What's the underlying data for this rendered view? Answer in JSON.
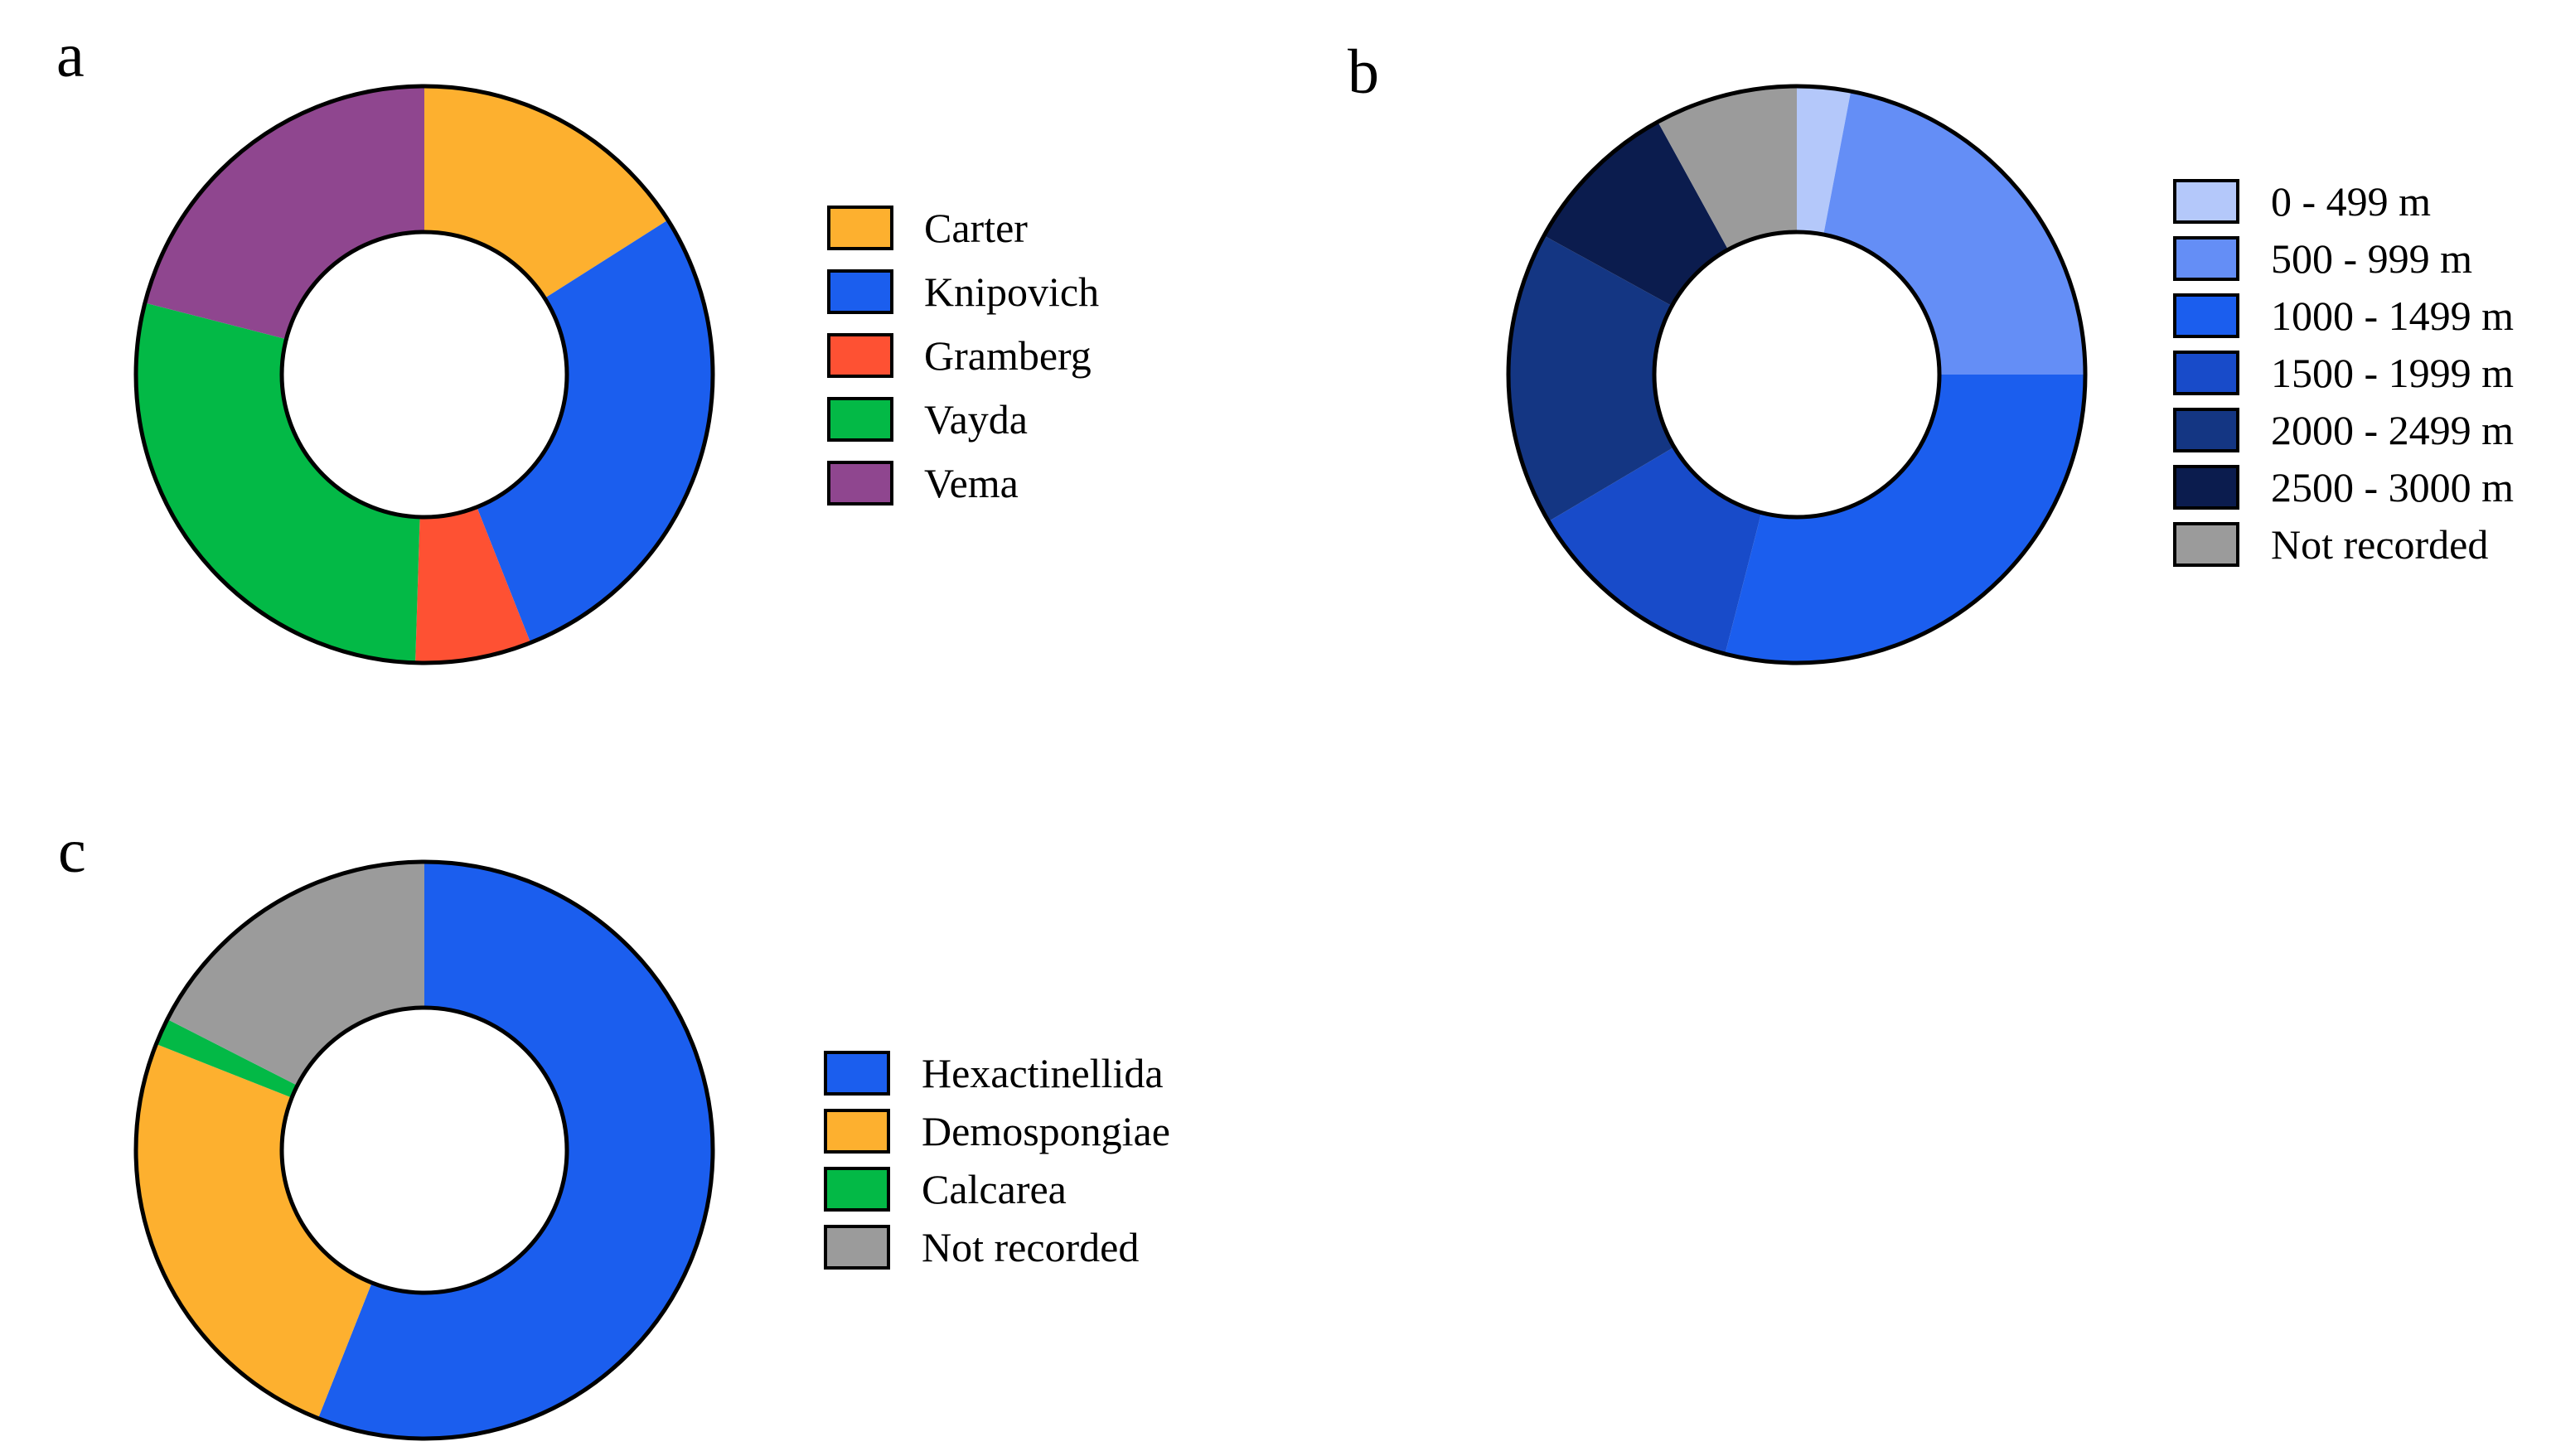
{
  "chart_data": [
    {
      "type": "donut",
      "panel": "a",
      "categories": [
        "Carter",
        "Knipovich",
        "Gramberg",
        "Vayda",
        "Vema"
      ],
      "values": [
        16,
        28,
        6.5,
        28.5,
        21
      ],
      "colors": [
        "#fdb02f",
        "#1b5eee",
        "#fe5133",
        "#03b946",
        "#8f468f"
      ]
    },
    {
      "type": "donut",
      "panel": "b",
      "categories": [
        "0 - 499 m",
        "500 - 999 m",
        "1000 - 1499 m",
        "1500 - 1999 m",
        "2000 - 2499 m",
        "2500 - 3000 m",
        "Not recorded"
      ],
      "values": [
        3,
        22,
        29,
        12.5,
        16.5,
        9,
        8
      ],
      "colors": [
        "#b4c8fa",
        "#648ef6",
        "#1b5eee",
        "#184bc9",
        "#143683",
        "#0b1c4e",
        "#9b9b9b"
      ]
    },
    {
      "type": "donut",
      "panel": "c",
      "categories": [
        "Hexactinellida",
        "Demospongiae",
        "Calcarea",
        "Not recorded"
      ],
      "values": [
        56,
        25,
        1.5,
        17.5
      ],
      "colors": [
        "#1b5eee",
        "#fdb02f",
        "#03b946",
        "#9b9b9b"
      ]
    }
  ]
}
